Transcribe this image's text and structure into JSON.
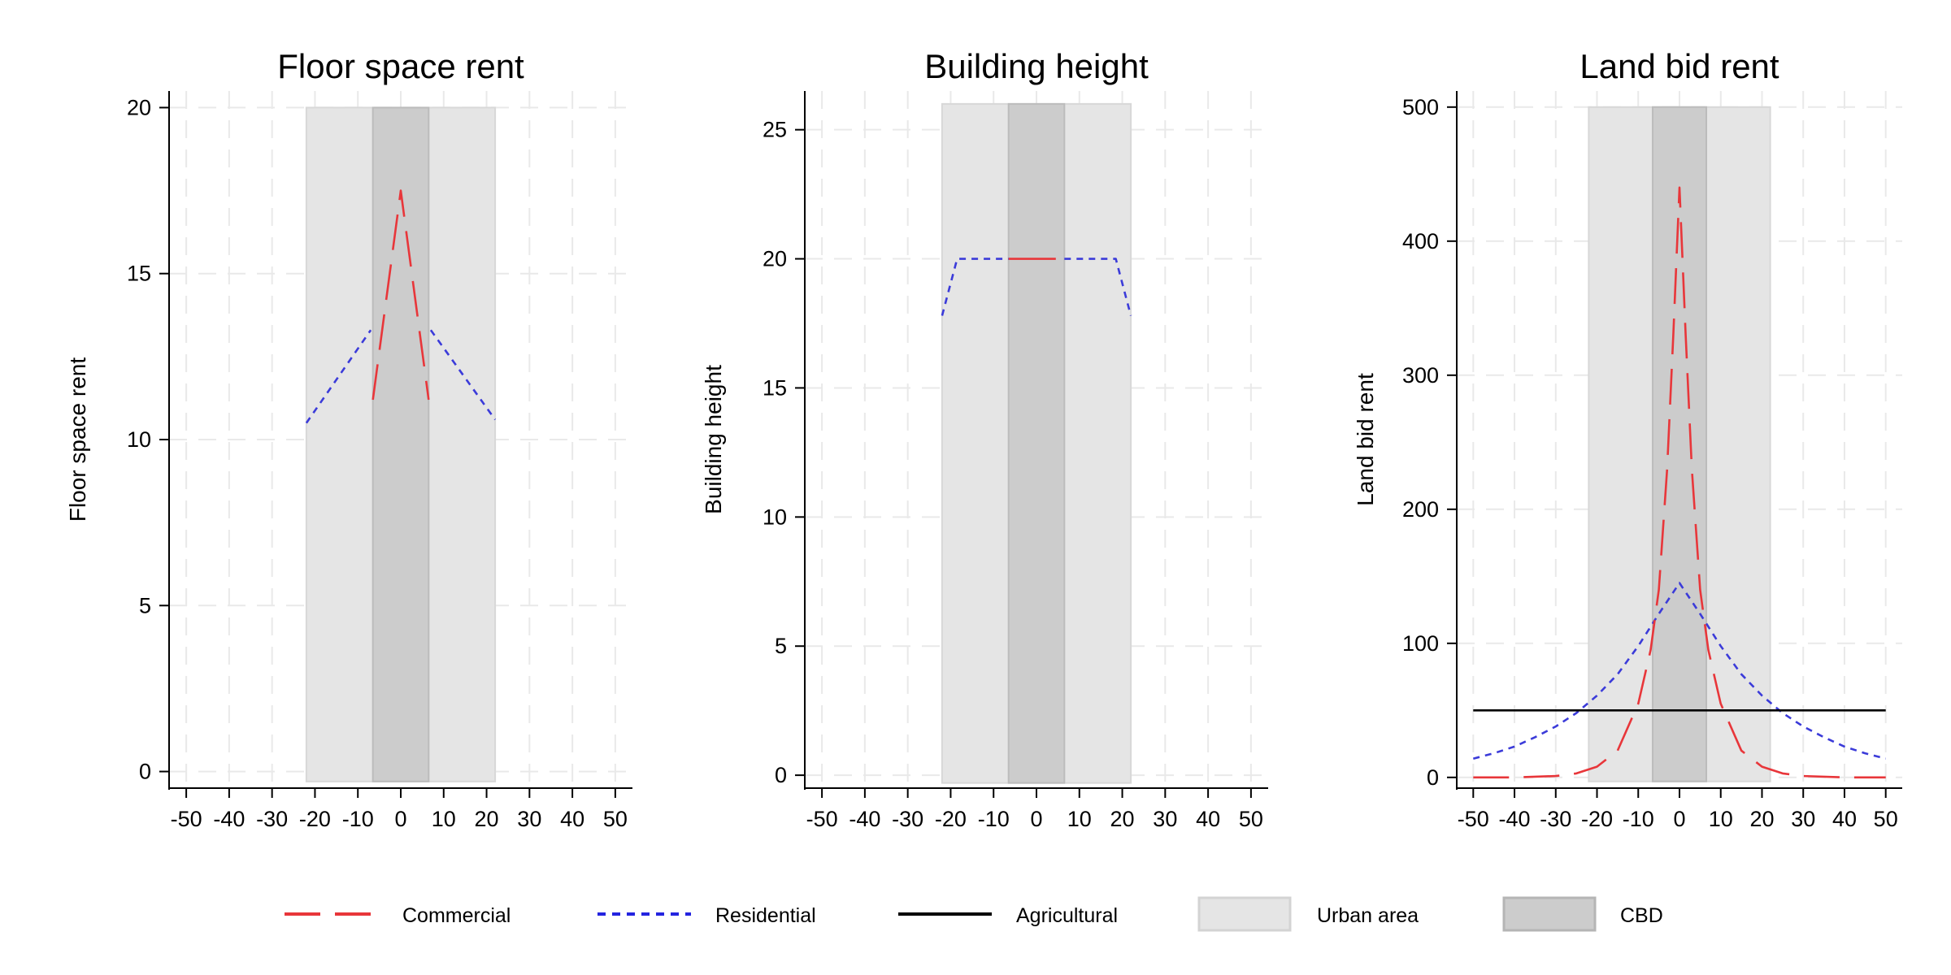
{
  "chart_data": [
    {
      "type": "line",
      "title": "Floor space rent",
      "xlabel": "",
      "ylabel": "Floor space rent",
      "xlim": [
        -54,
        54
      ],
      "ylim": [
        -0.5,
        20.5
      ],
      "xticks": [
        -50,
        -40,
        -30,
        -20,
        -10,
        0,
        10,
        20,
        30,
        40,
        50
      ],
      "yticks": [
        0,
        5,
        10,
        15,
        20
      ],
      "grid": true,
      "shaded_bands": [
        {
          "name": "Urban area",
          "x": [
            -22,
            22
          ],
          "y": [
            -0.3,
            20
          ]
        },
        {
          "name": "CBD",
          "x": [
            -6.5,
            6.5
          ],
          "y": [
            -0.3,
            20
          ]
        }
      ],
      "series": [
        {
          "name": "Residential",
          "style": "short-dash",
          "color": "#3b3bd9",
          "segments": [
            [
              [
                -22,
                10.5
              ],
              [
                -7,
                13.3
              ]
            ],
            [
              [
                7,
                13.3
              ],
              [
                22,
                10.6
              ]
            ]
          ]
        },
        {
          "name": "Commercial",
          "style": "long-dash",
          "color": "#e8363a",
          "segments": [
            [
              [
                -6.5,
                11.2
              ],
              [
                0,
                17.5
              ],
              [
                6.5,
                11.2
              ]
            ]
          ]
        }
      ]
    },
    {
      "type": "line",
      "title": "Building height",
      "xlabel": "",
      "ylabel": "Building height",
      "xlim": [
        -54,
        54
      ],
      "ylim": [
        -0.5,
        26.5
      ],
      "xticks": [
        -50,
        -40,
        -30,
        -20,
        -10,
        0,
        10,
        20,
        30,
        40,
        50
      ],
      "yticks": [
        0,
        5,
        10,
        15,
        20,
        25
      ],
      "grid": true,
      "shaded_bands": [
        {
          "name": "Urban area",
          "x": [
            -22,
            22
          ],
          "y": [
            -0.3,
            26
          ]
        },
        {
          "name": "CBD",
          "x": [
            -6.5,
            6.5
          ],
          "y": [
            -0.3,
            26
          ]
        }
      ],
      "series": [
        {
          "name": "Residential",
          "style": "short-dash",
          "color": "#3b3bd9",
          "segments": [
            [
              [
                -22,
                17.8
              ],
              [
                -18.5,
                20
              ],
              [
                -6.5,
                20
              ]
            ],
            [
              [
                6.5,
                20
              ],
              [
                18.5,
                20
              ],
              [
                22,
                17.8
              ]
            ]
          ]
        },
        {
          "name": "Commercial",
          "style": "solid",
          "color": "#e8363a",
          "segments": [
            [
              [
                -6.5,
                20
              ],
              [
                4.5,
                20
              ]
            ]
          ]
        }
      ]
    },
    {
      "type": "line",
      "title": "Land bid rent",
      "xlabel": "",
      "ylabel": "Land bid rent",
      "xlim": [
        -54,
        54
      ],
      "ylim": [
        -8,
        512
      ],
      "xticks": [
        -50,
        -40,
        -30,
        -20,
        -10,
        0,
        10,
        20,
        30,
        40,
        50
      ],
      "yticks": [
        0,
        100,
        200,
        300,
        400,
        500
      ],
      "grid": true,
      "shaded_bands": [
        {
          "name": "Urban area",
          "x": [
            -22,
            22
          ],
          "y": [
            -3,
            500
          ]
        },
        {
          "name": "CBD",
          "x": [
            -6.5,
            6.5
          ],
          "y": [
            -3,
            500
          ]
        }
      ],
      "series": [
        {
          "name": "Residential",
          "style": "short-dash",
          "color": "#3b3bd9",
          "x": [
            -50,
            -45,
            -40,
            -35,
            -30,
            -25,
            -20,
            -15,
            -10,
            -5,
            0,
            5,
            10,
            15,
            20,
            25,
            30,
            35,
            40,
            45,
            50
          ],
          "y": [
            14,
            18,
            23,
            30,
            38,
            48,
            61,
            77,
            98,
            122,
            145,
            122,
            98,
            77,
            61,
            48,
            38,
            30,
            23,
            18,
            14
          ]
        },
        {
          "name": "Commercial",
          "style": "long-dash",
          "color": "#e8363a",
          "x": [
            -50,
            -40,
            -30,
            -25,
            -20,
            -15,
            -10,
            -7,
            -5,
            -3,
            -1.5,
            0,
            1.5,
            3,
            5,
            7,
            10,
            15,
            20,
            25,
            30,
            40,
            50
          ],
          "y": [
            0,
            0,
            1,
            3,
            8,
            20,
            55,
            95,
            140,
            230,
            330,
            440,
            330,
            230,
            140,
            95,
            55,
            20,
            8,
            3,
            1,
            0,
            0
          ]
        },
        {
          "name": "Agricultural",
          "style": "solid",
          "color": "#000000",
          "x": [
            -50,
            50
          ],
          "y": [
            50,
            50
          ]
        }
      ]
    }
  ],
  "legend": {
    "placement": "bottom",
    "items": [
      {
        "label": "Commercial",
        "kind": "line",
        "style": "long-dash",
        "color": "#e8363a"
      },
      {
        "label": "Residential",
        "kind": "line",
        "style": "short-dash",
        "color": "#2424e0"
      },
      {
        "label": "Agricultural",
        "kind": "line",
        "style": "solid",
        "color": "#000000"
      },
      {
        "label": "Urban area",
        "kind": "box",
        "color": "#e5e5e5"
      },
      {
        "label": "CBD",
        "kind": "box",
        "color": "#cccccc"
      }
    ]
  }
}
